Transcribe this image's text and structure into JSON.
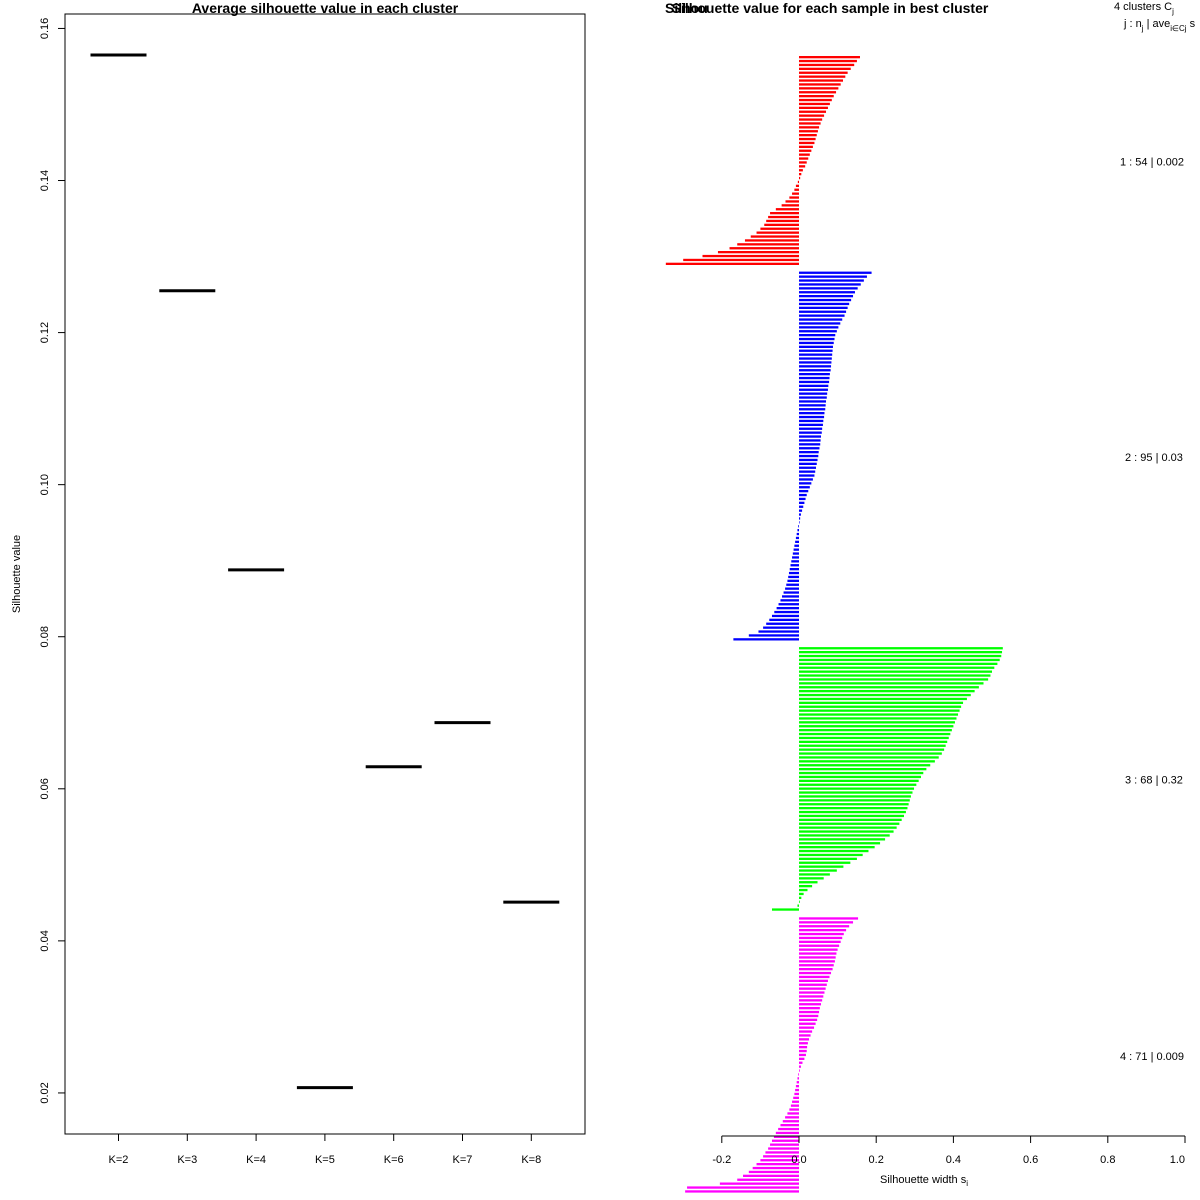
{
  "chart_data": [
    {
      "type": "scatter",
      "title": "Average silhouette value in each cluster",
      "xlabel": "",
      "ylabel": "Silhouette value",
      "categories": [
        "K=2",
        "K=3",
        "K=4",
        "K=5",
        "K=6",
        "K=7",
        "K=8"
      ],
      "values": [
        0.1565,
        0.1255,
        0.0888,
        0.0207,
        0.0629,
        0.0687,
        0.0451
      ],
      "y_ticks": [
        "0.02",
        "0.04",
        "0.06",
        "0.08",
        "0.10",
        "0.12",
        "0.14",
        "0.16"
      ],
      "ylim": [
        0.0146,
        0.1619
      ],
      "marker": "horizontal-segment",
      "color": "#000000"
    },
    {
      "type": "bar",
      "orientation": "horizontal",
      "title": "Silhouette value for each sample in best cluster",
      "title_overlap_text": "Silhou",
      "xlabel": "Silhouette width s",
      "xlabel_subscript": "i",
      "x_ticks": [
        "-0.2",
        "0.0",
        "0.2",
        "0.4",
        "0.6",
        "0.8",
        "1.0"
      ],
      "xlim": [
        -0.2,
        1.0
      ],
      "legend_header": {
        "line1_prefix": "4  clusters  C",
        "line1_sub": "j",
        "line2_a": "j :  n",
        "line2_sub1": "j",
        "line2_b": " | ave",
        "line2_sub2": "i∈Cj",
        "line2_c": "  s"
      },
      "clusters": [
        {
          "label": "1 :  54  |  0.002",
          "color": "#ff0000",
          "values": [
            0.158,
            0.15,
            0.143,
            0.134,
            0.126,
            0.12,
            0.114,
            0.108,
            0.102,
            0.096,
            0.09,
            0.085,
            0.08,
            0.075,
            0.07,
            0.065,
            0.06,
            0.056,
            0.052,
            0.049,
            0.046,
            0.043,
            0.04,
            0.036,
            0.032,
            0.028,
            0.024,
            0.02,
            0.016,
            0.01,
            0.006,
            0.003,
            -0.003,
            -0.008,
            -0.012,
            -0.018,
            -0.025,
            -0.035,
            -0.045,
            -0.06,
            -0.075,
            -0.08,
            -0.085,
            -0.09,
            -0.1,
            -0.11,
            -0.125,
            -0.14,
            -0.16,
            -0.18,
            -0.21,
            -0.25,
            -0.3,
            -0.345
          ]
        },
        {
          "label": "2 :  95  |  0.03",
          "color": "#0000ff",
          "values": [
            0.188,
            0.176,
            0.168,
            0.16,
            0.152,
            0.145,
            0.14,
            0.135,
            0.13,
            0.126,
            0.122,
            0.118,
            0.112,
            0.107,
            0.102,
            0.098,
            0.094,
            0.092,
            0.09,
            0.088,
            0.087,
            0.086,
            0.085,
            0.084,
            0.083,
            0.082,
            0.08,
            0.079,
            0.078,
            0.076,
            0.075,
            0.073,
            0.072,
            0.07,
            0.069,
            0.068,
            0.066,
            0.065,
            0.063,
            0.062,
            0.06,
            0.059,
            0.057,
            0.056,
            0.055,
            0.053,
            0.051,
            0.05,
            0.048,
            0.046,
            0.044,
            0.042,
            0.04,
            0.036,
            0.032,
            0.028,
            0.024,
            0.02,
            0.017,
            0.014,
            0.011,
            0.008,
            0.005,
            0.003,
            0.001,
            -0.002,
            -0.004,
            -0.006,
            -0.008,
            -0.01,
            -0.012,
            -0.014,
            -0.016,
            -0.018,
            -0.02,
            -0.022,
            -0.024,
            -0.026,
            -0.028,
            -0.03,
            -0.033,
            -0.036,
            -0.04,
            -0.044,
            -0.048,
            -0.053,
            -0.058,
            -0.064,
            -0.07,
            -0.077,
            -0.085,
            -0.093,
            -0.105,
            -0.13,
            -0.17
          ]
        },
        {
          "label": "3 :  68  |  0.32",
          "color": "#00ff00",
          "values": [
            0.528,
            0.526,
            0.524,
            0.52,
            0.514,
            0.506,
            0.5,
            0.496,
            0.49,
            0.478,
            0.466,
            0.455,
            0.445,
            0.435,
            0.425,
            0.42,
            0.416,
            0.412,
            0.408,
            0.404,
            0.4,
            0.396,
            0.392,
            0.388,
            0.384,
            0.38,
            0.376,
            0.37,
            0.362,
            0.352,
            0.34,
            0.33,
            0.322,
            0.316,
            0.31,
            0.304,
            0.298,
            0.294,
            0.29,
            0.287,
            0.284,
            0.281,
            0.277,
            0.272,
            0.266,
            0.26,
            0.253,
            0.245,
            0.235,
            0.223,
            0.21,
            0.196,
            0.18,
            0.165,
            0.15,
            0.133,
            0.115,
            0.098,
            0.08,
            0.064,
            0.048,
            0.034,
            0.022,
            0.012,
            0.006,
            0.002,
            -0.004,
            -0.07
          ]
        },
        {
          "label": "4 :  71  |  0.009",
          "color": "#ff00ff",
          "values": [
            0.153,
            0.14,
            0.13,
            0.122,
            0.116,
            0.112,
            0.108,
            0.104,
            0.1,
            0.097,
            0.095,
            0.093,
            0.09,
            0.087,
            0.083,
            0.079,
            0.075,
            0.072,
            0.069,
            0.066,
            0.063,
            0.06,
            0.057,
            0.054,
            0.052,
            0.05,
            0.047,
            0.043,
            0.039,
            0.034,
            0.03,
            0.026,
            0.023,
            0.021,
            0.02,
            0.018,
            0.014,
            0.009,
            0.005,
            0.002,
            -0.002,
            -0.004,
            -0.006,
            -0.008,
            -0.01,
            -0.012,
            -0.015,
            -0.018,
            -0.021,
            -0.025,
            -0.03,
            -0.036,
            -0.042,
            -0.048,
            -0.054,
            -0.06,
            -0.065,
            -0.07,
            -0.075,
            -0.08,
            -0.087,
            -0.093,
            -0.1,
            -0.11,
            -0.12,
            -0.13,
            -0.145,
            -0.16,
            -0.205,
            -0.29,
            -0.295
          ]
        }
      ]
    }
  ]
}
